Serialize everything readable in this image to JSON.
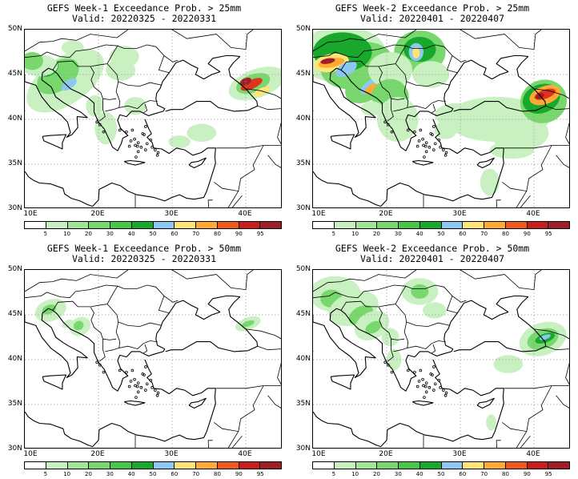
{
  "panels": [
    {
      "title1": "GEFS Week-1 Exceedance Prob. > 25mm",
      "title2": "Valid: 20220325 - 20220331",
      "field": "w1_25"
    },
    {
      "title1": "GEFS Week-2 Exceedance Prob. > 25mm",
      "title2": "Valid: 20220401 - 20220407",
      "field": "w2_25"
    },
    {
      "title1": "GEFS Week-1 Exceedance Prob. > 50mm",
      "title2": "Valid: 20220325 - 20220331",
      "field": "w1_50"
    },
    {
      "title1": "GEFS Week-2 Exceedance Prob. > 50mm",
      "title2": "Valid: 20220401 - 20220407",
      "field": "w2_50"
    }
  ],
  "axes": {
    "lat_labels": [
      "50N",
      "45N",
      "40N",
      "35N",
      "30N"
    ],
    "lon_labels": [
      "10E",
      "20E",
      "30E",
      "40E"
    ],
    "lat_values": [
      50,
      45,
      40,
      35,
      30
    ],
    "lon_values": [
      10,
      20,
      30,
      40
    ],
    "lon_range": [
      10,
      45
    ],
    "lat_range": [
      30,
      50
    ],
    "grid": "dotted at 10 deg lon / 5 deg lat"
  },
  "colorbar": {
    "labels": [
      "5",
      "10",
      "20",
      "30",
      "40",
      "50",
      "60",
      "70",
      "80",
      "90",
      "95"
    ],
    "colors": [
      "#ffffff",
      "#c8f0c0",
      "#a0e696",
      "#78d86e",
      "#46c846",
      "#18a82c",
      "#8cc8f0",
      "#ffe478",
      "#ffaa32",
      "#f05a1e",
      "#c81e1e",
      "#a01e28"
    ]
  },
  "map_colors": {
    "low": "#c8f0c0",
    "med": "#78d86e",
    "high": "#18a82c",
    "blue": "#8cc8f0",
    "yellow": "#ffe478",
    "orange": "#ffaa32",
    "red": "#e0321e",
    "dark": "#a01e28"
  }
}
